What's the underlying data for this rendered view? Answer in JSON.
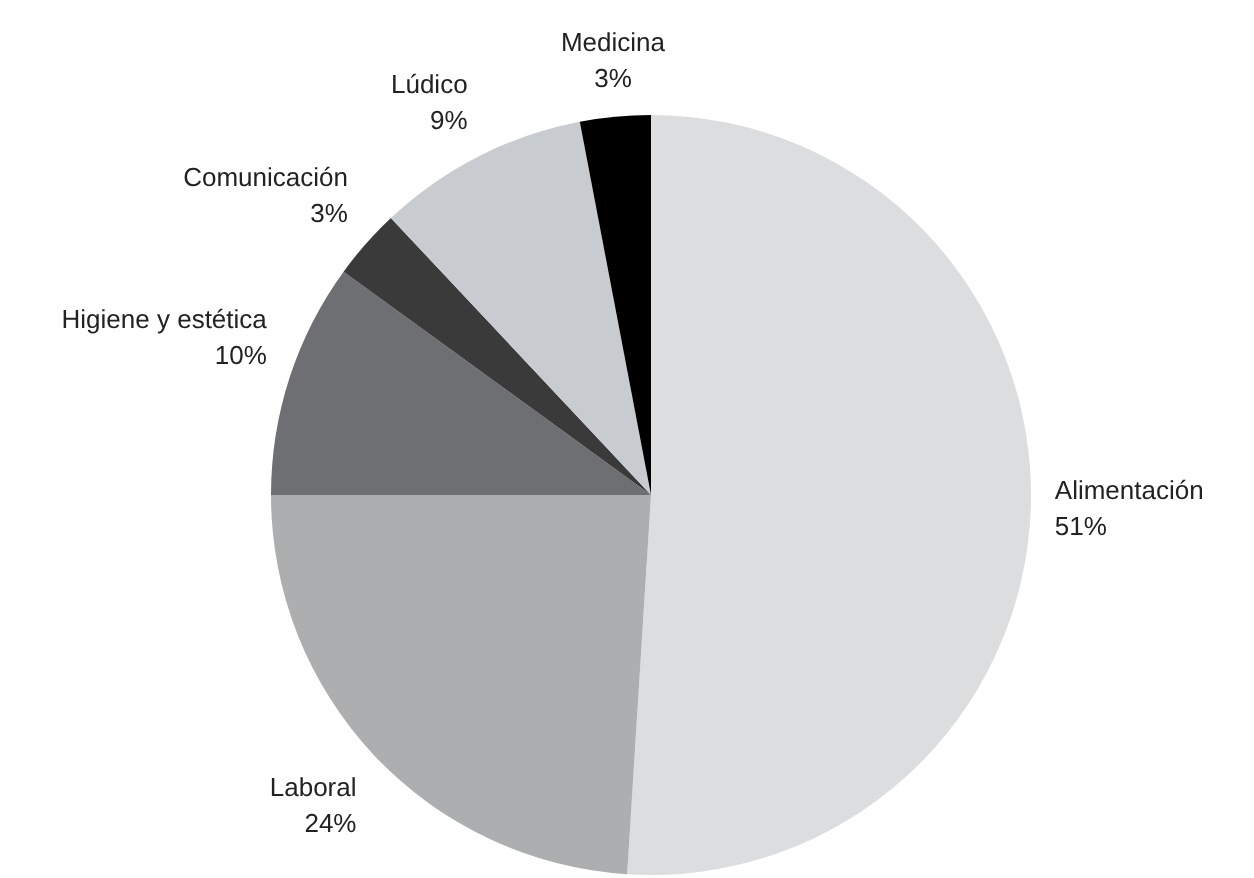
{
  "chart_data": {
    "type": "pie",
    "categories": [
      "Alimentación",
      "Laboral",
      "Higiene y estética",
      "Comunicación",
      "Lúdico",
      "Medicina"
    ],
    "values": [
      51,
      24,
      10,
      3,
      9,
      3
    ],
    "colors": [
      "#dcdddf",
      "#adaeb0",
      "#6e6f72",
      "#3a3a3a",
      "#c8cbd0",
      "#000000"
    ],
    "value_labels": [
      "51%",
      "24%",
      "10%",
      "3%",
      "9%",
      "3%"
    ],
    "legend": false
  }
}
